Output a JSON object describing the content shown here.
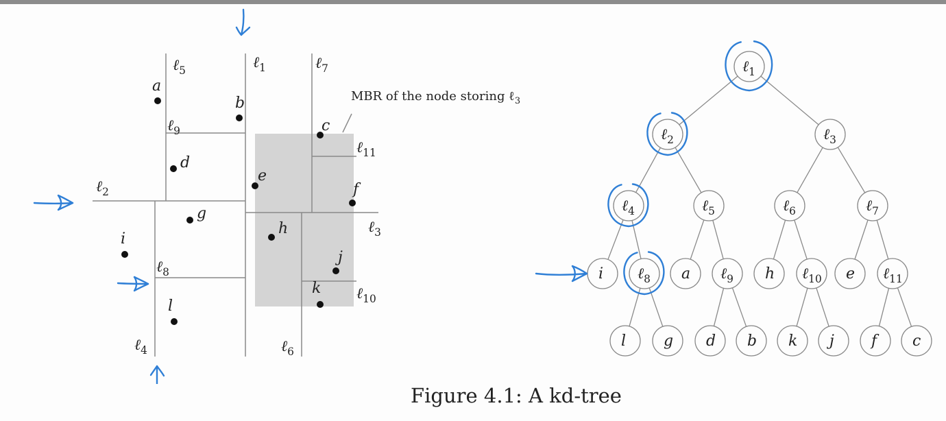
{
  "figure": {
    "caption": "Figure 4.1: A kd-tree",
    "mbr_annotation": "MBR of the node storing ℓ3",
    "mbr_annotation_base": "MBR of the node storing ℓ",
    "mbr_annotation_sub": "3"
  },
  "partition": {
    "lines": [
      {
        "id": "l1",
        "base": "ℓ",
        "sub": "1"
      },
      {
        "id": "l2",
        "base": "ℓ",
        "sub": "2"
      },
      {
        "id": "l3",
        "base": "ℓ",
        "sub": "3"
      },
      {
        "id": "l4",
        "base": "ℓ",
        "sub": "4"
      },
      {
        "id": "l5",
        "base": "ℓ",
        "sub": "5"
      },
      {
        "id": "l6",
        "base": "ℓ",
        "sub": "6"
      },
      {
        "id": "l7",
        "base": "ℓ",
        "sub": "7"
      },
      {
        "id": "l8",
        "base": "ℓ",
        "sub": "8"
      },
      {
        "id": "l9",
        "base": "ℓ",
        "sub": "9"
      },
      {
        "id": "l10",
        "base": "ℓ",
        "sub": "10"
      },
      {
        "id": "l11",
        "base": "ℓ",
        "sub": "11"
      }
    ],
    "points": [
      "a",
      "b",
      "c",
      "d",
      "e",
      "f",
      "g",
      "h",
      "i",
      "j",
      "k",
      "l"
    ]
  },
  "tree": {
    "nodes": [
      {
        "id": "l1",
        "base": "ℓ",
        "sub": "1",
        "circled": true
      },
      {
        "id": "l2",
        "base": "ℓ",
        "sub": "2",
        "circled": true
      },
      {
        "id": "l3",
        "base": "ℓ",
        "sub": "3",
        "circled": false
      },
      {
        "id": "l4",
        "base": "ℓ",
        "sub": "4",
        "circled": true
      },
      {
        "id": "l5",
        "base": "ℓ",
        "sub": "5",
        "circled": false
      },
      {
        "id": "l6",
        "base": "ℓ",
        "sub": "6",
        "circled": false
      },
      {
        "id": "l7",
        "base": "ℓ",
        "sub": "7",
        "circled": false
      },
      {
        "id": "i",
        "base": "i",
        "sub": "",
        "circled": false
      },
      {
        "id": "l8",
        "base": "ℓ",
        "sub": "8",
        "circled": true
      },
      {
        "id": "a",
        "base": "a",
        "sub": "",
        "circled": false
      },
      {
        "id": "l9",
        "base": "ℓ",
        "sub": "9",
        "circled": false
      },
      {
        "id": "h",
        "base": "h",
        "sub": "",
        "circled": false
      },
      {
        "id": "l10",
        "base": "ℓ",
        "sub": "10",
        "circled": false
      },
      {
        "id": "e",
        "base": "e",
        "sub": "",
        "circled": false
      },
      {
        "id": "l11",
        "base": "ℓ",
        "sub": "11",
        "circled": false
      },
      {
        "id": "l",
        "base": "l",
        "sub": "",
        "circled": false
      },
      {
        "id": "g",
        "base": "g",
        "sub": "",
        "circled": false
      },
      {
        "id": "d",
        "base": "d",
        "sub": "",
        "circled": false
      },
      {
        "id": "b",
        "base": "b",
        "sub": "",
        "circled": false
      },
      {
        "id": "k",
        "base": "k",
        "sub": "",
        "circled": false
      },
      {
        "id": "j",
        "base": "j",
        "sub": "",
        "circled": false
      },
      {
        "id": "f",
        "base": "f",
        "sub": "",
        "circled": false
      },
      {
        "id": "c",
        "base": "c",
        "sub": "",
        "circled": false
      }
    ],
    "edges": [
      [
        "l1",
        "l2"
      ],
      [
        "l1",
        "l3"
      ],
      [
        "l2",
        "l4"
      ],
      [
        "l2",
        "l5"
      ],
      [
        "l3",
        "l6"
      ],
      [
        "l3",
        "l7"
      ],
      [
        "l4",
        "i"
      ],
      [
        "l4",
        "l8"
      ],
      [
        "l5",
        "a"
      ],
      [
        "l5",
        "l9"
      ],
      [
        "l6",
        "h"
      ],
      [
        "l6",
        "l10"
      ],
      [
        "l7",
        "e"
      ],
      [
        "l7",
        "l11"
      ],
      [
        "l8",
        "l"
      ],
      [
        "l8",
        "g"
      ],
      [
        "l9",
        "d"
      ],
      [
        "l9",
        "b"
      ],
      [
        "l10",
        "k"
      ],
      [
        "l10",
        "j"
      ],
      [
        "l11",
        "f"
      ],
      [
        "l11",
        "c"
      ]
    ]
  },
  "colors": {
    "ink": "#222222",
    "line": "#888888",
    "mbr_fill": "#d4d4d4",
    "annotation": "#2f7fd6"
  }
}
